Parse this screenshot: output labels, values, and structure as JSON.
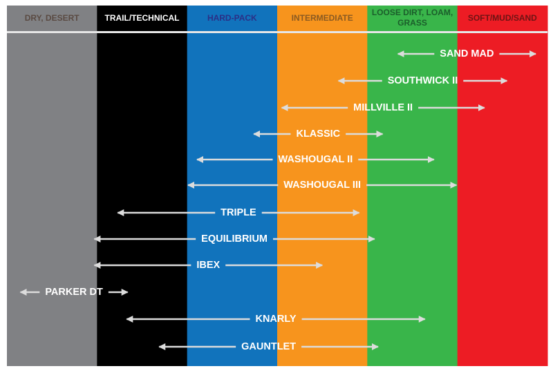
{
  "columns": [
    {
      "label": "DRY, DESERT",
      "color": "#808184",
      "text_color": "#5a4a42"
    },
    {
      "label": "TRAIL/TECHNICAL",
      "color": "#000000",
      "text_color": "#ffffff"
    },
    {
      "label": "HARD-PACK",
      "color": "#1173bc",
      "text_color": "#2b2f86"
    },
    {
      "label": "INTERMEDIATE",
      "color": "#f7941d",
      "text_color": "#8a5a22"
    },
    {
      "label": "LOOSE DIRT, LOAM, GRASS",
      "color": "#39b54a",
      "text_color": "#1b5e2b"
    },
    {
      "label": "SOFT/MUD/SAND",
      "color": "#ed1c24",
      "text_color": "#6d1414"
    }
  ],
  "items": [
    {
      "label": "SAND MAD",
      "range": [
        4.34,
        5.87
      ]
    },
    {
      "label": "SOUTHWICK II",
      "range": [
        3.68,
        5.55
      ]
    },
    {
      "label": "MILLVILLE II",
      "range": [
        3.05,
        5.3
      ]
    },
    {
      "label": "KLASSIC",
      "range": [
        2.74,
        4.17
      ]
    },
    {
      "label": "WASHOUGAL II",
      "range": [
        2.11,
        4.74
      ]
    },
    {
      "label": "WASHOUGAL III",
      "range": [
        2.01,
        4.99
      ]
    },
    {
      "label": "TRIPLE",
      "range": [
        1.23,
        3.91
      ]
    },
    {
      "label": "EQUILIBRIUM",
      "range": [
        0.97,
        4.08
      ]
    },
    {
      "label": "IBEX",
      "range": [
        0.97,
        3.5
      ]
    },
    {
      "label": "PARKER DT",
      "range": [
        0.15,
        1.34
      ]
    },
    {
      "label": "KNARLY",
      "range": [
        1.33,
        4.64
      ]
    },
    {
      "label": "GAUNTLET",
      "range": [
        1.69,
        4.12
      ]
    }
  ]
}
